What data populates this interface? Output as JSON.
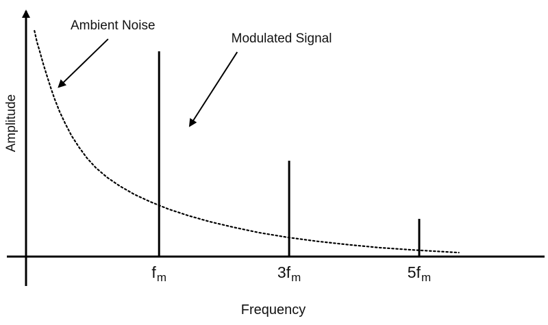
{
  "figure": {
    "background": "#ffffff",
    "ink": "#000000"
  },
  "chart_data": {
    "type": "line",
    "title": "",
    "xlabel": "Frequency",
    "ylabel": "Amplitude",
    "grid": false,
    "axes": {
      "x_arrow": false,
      "y_arrow": true,
      "x_ticks": [
        "fm",
        "3fm",
        "5fm"
      ],
      "x_range": [
        0,
        1
      ],
      "y_range": [
        0,
        1
      ]
    },
    "noise_curve": {
      "name": "Ambient Noise",
      "style": "dotted",
      "points": [
        [
          0.017,
          0.904
        ],
        [
          0.022,
          0.86
        ],
        [
          0.028,
          0.82
        ],
        [
          0.035,
          0.77
        ],
        [
          0.042,
          0.726
        ],
        [
          0.05,
          0.676
        ],
        [
          0.058,
          0.63
        ],
        [
          0.068,
          0.58
        ],
        [
          0.079,
          0.534
        ],
        [
          0.092,
          0.484
        ],
        [
          0.107,
          0.438
        ],
        [
          0.123,
          0.395
        ],
        [
          0.141,
          0.356
        ],
        [
          0.164,
          0.317
        ],
        [
          0.19,
          0.282
        ],
        [
          0.219,
          0.249
        ],
        [
          0.252,
          0.219
        ],
        [
          0.288,
          0.19
        ],
        [
          0.328,
          0.164
        ],
        [
          0.371,
          0.14
        ],
        [
          0.418,
          0.118
        ],
        [
          0.471,
          0.096
        ],
        [
          0.529,
          0.077
        ],
        [
          0.589,
          0.061
        ],
        [
          0.654,
          0.047
        ],
        [
          0.714,
          0.036
        ],
        [
          0.778,
          0.027
        ],
        [
          0.875,
          0.016
        ]
      ]
    },
    "impulses": {
      "name": "Modulated Signal",
      "style": "vertical-line",
      "points": [
        {
          "x": 0.269,
          "amplitude": 0.822,
          "label_base": "f",
          "label_sub": "m"
        },
        {
          "x": 0.532,
          "amplitude": 0.384,
          "label_base": "3f",
          "label_sub": "m"
        },
        {
          "x": 0.795,
          "amplitude": 0.151,
          "label_base": "5f",
          "label_sub": "m"
        }
      ]
    },
    "annotations": [
      {
        "id": "ambient-noise",
        "text": "Ambient Noise",
        "label_pos": [
          0.09,
          0.953
        ],
        "arrow_from": [
          0.166,
          0.871
        ],
        "arrow_to": [
          0.066,
          0.679
        ]
      },
      {
        "id": "modulated-signal",
        "text": "Modulated Signal",
        "label_pos": [
          0.415,
          0.901
        ],
        "arrow_from": [
          0.427,
          0.819
        ],
        "arrow_to": [
          0.331,
          0.523
        ]
      }
    ]
  }
}
